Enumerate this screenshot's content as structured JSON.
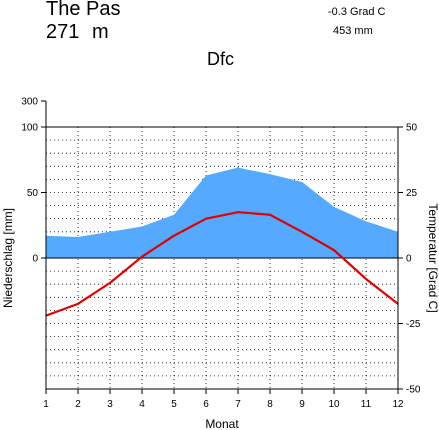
{
  "header": {
    "station": "The Pas",
    "elevation_value": "271",
    "elevation_unit": "m",
    "annual_temperature": "-0.3 Grad C",
    "annual_precipitation": "453 mm",
    "climate_class": "Dfc"
  },
  "chart_data": {
    "type": "line",
    "xlabel": "Monat",
    "ylabel_left": "Niederschlag [mm]",
    "ylabel_right": "Temperatur [Grad C]",
    "x": [
      1,
      2,
      3,
      4,
      5,
      6,
      7,
      8,
      9,
      10,
      11,
      12
    ],
    "x_ticks": [
      "1",
      "2",
      "3",
      "4",
      "5",
      "6",
      "7",
      "8",
      "9",
      "10",
      "11",
      "12"
    ],
    "precip_ticks": [
      "300",
      "100",
      "50",
      "0"
    ],
    "temp_ticks": [
      "50",
      "25",
      "0",
      "-25",
      "-50"
    ],
    "xlim": [
      1,
      12
    ],
    "temp_ylim": [
      -50,
      50
    ],
    "precip_ylim": [
      0,
      100
    ],
    "precip_color": "#55aaff",
    "temp_color": "#dd0000",
    "grid": true,
    "series": [
      {
        "kind": "area",
        "axis": "left",
        "values": [
          17,
          16,
          20,
          24,
          33,
          63,
          69,
          64,
          58,
          39,
          28,
          20
        ]
      },
      {
        "kind": "line",
        "axis": "right",
        "values": [
          -22,
          -17.5,
          -9.5,
          0.5,
          8.5,
          15,
          17.5,
          16.5,
          10,
          3,
          -8,
          -17.5
        ]
      }
    ]
  }
}
